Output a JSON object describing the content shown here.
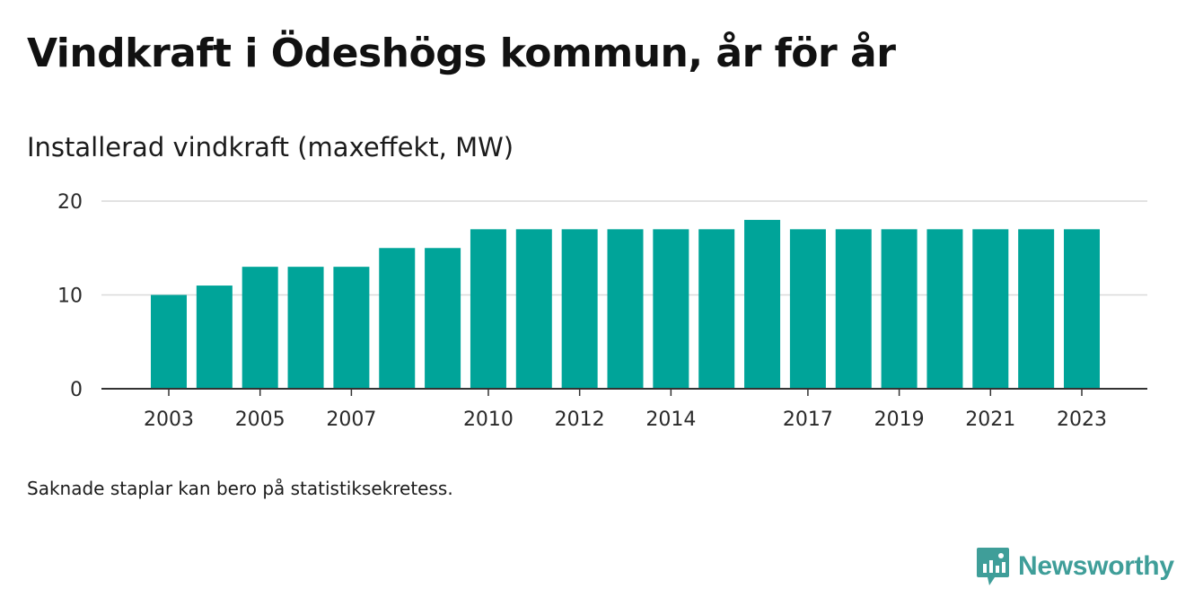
{
  "header": {
    "title": "Vindkraft i Ödeshögs kommun, år för år",
    "subtitle": "Installerad vindkraft (maxeffekt, MW)"
  },
  "footer": {
    "note": "Saknade staplar kan bero på statistiksekretess.",
    "brand": "Newsworthy"
  },
  "colors": {
    "bar": "#00a499",
    "grid": "#d9d9d9",
    "axis": "#333333",
    "brand": "#3f9e99"
  },
  "chart_data": {
    "type": "bar",
    "categories": [
      "2003",
      "2004",
      "2005",
      "2006",
      "2007",
      "2008",
      "2009",
      "2010",
      "2011",
      "2012",
      "2013",
      "2014",
      "2015",
      "2016",
      "2017",
      "2018",
      "2019",
      "2020",
      "2021",
      "2022",
      "2023"
    ],
    "values": [
      10,
      11,
      13,
      13,
      13,
      15,
      15,
      17,
      17,
      17,
      17,
      17,
      17,
      18,
      17,
      17,
      17,
      17,
      17,
      17,
      17
    ],
    "x_tick_labels": [
      "2003",
      "2005",
      "2007",
      "2010",
      "2012",
      "2014",
      "2017",
      "2019",
      "2021",
      "2023"
    ],
    "y_ticks": [
      0,
      10,
      20
    ],
    "ylim": [
      0,
      20
    ],
    "xlabel": "",
    "ylabel": "",
    "grid": true,
    "legend": "none"
  }
}
